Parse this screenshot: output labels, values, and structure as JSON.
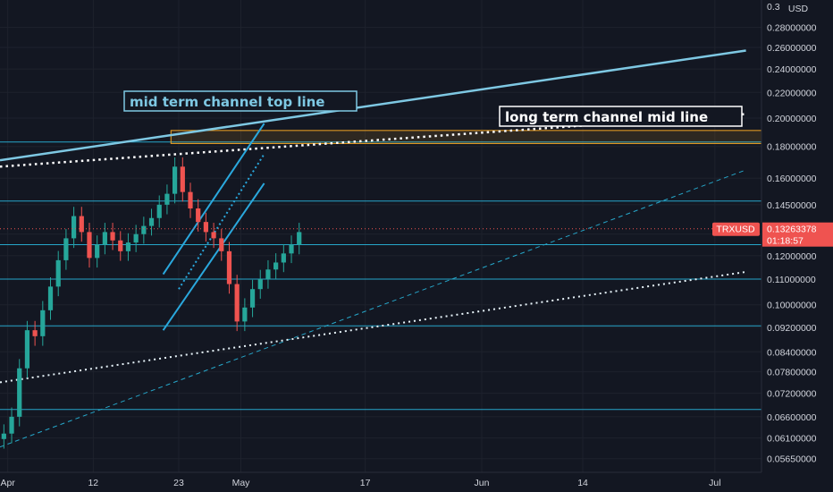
{
  "chart_data": {
    "type": "candlestick",
    "symbol": "TRXUSD",
    "currency": "USD",
    "last_price": "0.13263378",
    "countdown": "01:18:57",
    "y_scale": "log",
    "ylim": [
      0.0537,
      0.31
    ],
    "y_top_label": "0.3",
    "y_ticks": [
      "0.28000000",
      "0.26000000",
      "0.24000000",
      "0.22000000",
      "0.20000000",
      "0.18000000",
      "0.16000000",
      "0.14500000",
      "0.13000000",
      "0.12000000",
      "0.11000000",
      "0.10000000",
      "0.09200000",
      "0.08400000",
      "0.07800000",
      "0.07200000",
      "0.06600000",
      "0.06100000",
      "0.05650000"
    ],
    "x_ticks": [
      "Apr",
      "12",
      "23",
      "May",
      "17",
      "Jun",
      "14",
      "Jul"
    ],
    "x_tick_days": [
      0,
      11,
      22,
      30,
      46,
      61,
      74,
      91
    ],
    "xlim_days": [
      -1,
      97
    ],
    "candles_start_day": -1,
    "close_series": [
      0.062,
      0.066,
      0.079,
      0.091,
      0.089,
      0.098,
      0.107,
      0.118,
      0.128,
      0.139,
      0.131,
      0.119,
      0.125,
      0.131,
      0.127,
      0.122,
      0.126,
      0.13,
      0.134,
      0.138,
      0.145,
      0.151,
      0.167,
      0.152,
      0.143,
      0.136,
      0.131,
      0.128,
      0.122,
      0.108,
      0.094,
      0.099,
      0.106,
      0.11,
      0.114,
      0.117,
      0.121,
      0.125,
      0.131
    ],
    "horizontal_levels": [
      0.0678,
      0.0925,
      0.11,
      0.125,
      0.147,
      0.183
    ],
    "resistance_zone": [
      0.182,
      0.191
    ],
    "trend_lines": {
      "mid_term_top": [
        [
          -1,
          0.171
        ],
        [
          95,
          0.257
        ]
      ],
      "long_term_mid": [
        [
          -1,
          0.167
        ],
        [
          95,
          0.203
        ]
      ],
      "long_dotted_support": [
        [
          -1,
          0.075
        ],
        [
          95,
          0.113
        ]
      ],
      "long_dashed_support": [
        [
          -1,
          0.059
        ],
        [
          95,
          0.165
        ]
      ],
      "short_channel_upper": [
        [
          20,
          0.112
        ],
        [
          33,
          0.196
        ]
      ],
      "short_channel_lower": [
        [
          20,
          0.091
        ],
        [
          33,
          0.157
        ]
      ],
      "short_channel_mid": [
        [
          22,
          0.106
        ],
        [
          33,
          0.175
        ]
      ]
    },
    "annotations": [
      "mid term channel top line",
      "long term channel mid line"
    ]
  },
  "colors": {
    "background": "#131722",
    "up": "#26a69a",
    "down": "#ef5350",
    "trend_line": "#7ec8e3",
    "level_line": "#26a6c9",
    "channel": "#2aa8dd",
    "zone": "#f5a623",
    "price_tag": "#ef5350"
  }
}
